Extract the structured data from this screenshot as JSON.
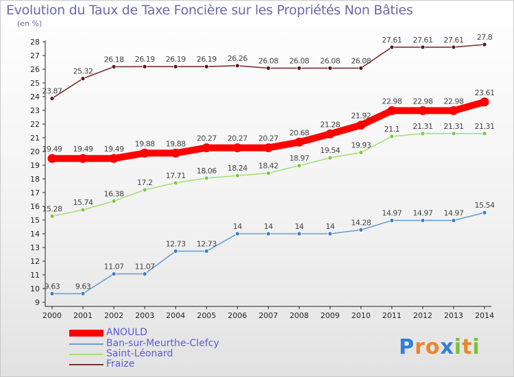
{
  "title": "Evolution du Taux de Taxe Foncière sur les Propriétés Non Bâties",
  "unit_label": "(en %)",
  "logo": {
    "text": "Proxiti"
  },
  "chart_data": {
    "type": "line",
    "x": [
      "2000",
      "2001",
      "2002",
      "2003",
      "2004",
      "2005",
      "2006",
      "2007",
      "2008",
      "2009",
      "2010",
      "2011",
      "2012",
      "2013",
      "2014"
    ],
    "ylim": [
      9,
      28
    ],
    "yticks": [
      9,
      10,
      11,
      12,
      13,
      14,
      15,
      16,
      17,
      18,
      19,
      20,
      21,
      22,
      23,
      24,
      25,
      26,
      27,
      28
    ],
    "grid": false,
    "legend_position": "bottom-left",
    "series": [
      {
        "name": "ANOULD",
        "color": "#ff0000",
        "point_color": "#ff0000",
        "values": [
          19.49,
          19.49,
          19.49,
          19.88,
          19.88,
          20.27,
          20.27,
          20.27,
          20.68,
          21.28,
          21.92,
          22.98,
          22.98,
          22.98,
          23.61
        ]
      },
      {
        "name": "Ban-sur-Meurthe-Clefcy",
        "color": "#6a9fd0",
        "point_color": "#3b7fc4",
        "values": [
          9.63,
          9.63,
          11.07,
          11.07,
          12.73,
          12.73,
          14,
          14,
          14,
          14,
          14.28,
          14.97,
          14.97,
          14.97,
          15.54
        ]
      },
      {
        "name": "Saint-Léonard",
        "color": "#a6e07a",
        "point_color": "#7bc843",
        "values": [
          15.28,
          15.74,
          16.38,
          17.2,
          17.71,
          18.06,
          18.24,
          18.42,
          18.97,
          19.54,
          19.93,
          21.1,
          21.31,
          21.31,
          21.31
        ]
      },
      {
        "name": "Fraize",
        "color": "#7a3030",
        "point_color": "#5a1a1a",
        "values": [
          23.87,
          25.32,
          26.18,
          26.19,
          26.19,
          26.19,
          26.26,
          26.08,
          26.08,
          26.08,
          26.08,
          27.61,
          27.61,
          27.61,
          27.8
        ]
      }
    ],
    "value_labels": [
      [
        "19.49",
        "19.49",
        "19.49",
        "19.88",
        "19.88",
        "20.27",
        "20.27",
        "20.27",
        "20.68",
        "21.28",
        "21.92",
        "22.98",
        "22.98",
        "22.98",
        "23.61"
      ],
      [
        "9.63",
        "9.63",
        "11.07",
        "11.07",
        "12.73",
        "12.73",
        "14",
        "14",
        "14",
        "14",
        "14.28",
        "14.97",
        "14.97",
        "14.97",
        "15.54"
      ],
      [
        "15.28",
        "15.74",
        "16.38",
        "17.2",
        "17.71",
        "18.06",
        "18.24",
        "18.42",
        "18.97",
        "19.54",
        "19.93",
        "21.1",
        "21.31",
        "21.31",
        "21.31"
      ],
      [
        "23.87",
        "25.32",
        "26.18",
        "26.19",
        "26.19",
        "26.19",
        "26.26",
        "26.08",
        "26.08",
        "26.08",
        "26.08",
        "27.61",
        "27.61",
        "27.61",
        "27.8"
      ]
    ]
  }
}
